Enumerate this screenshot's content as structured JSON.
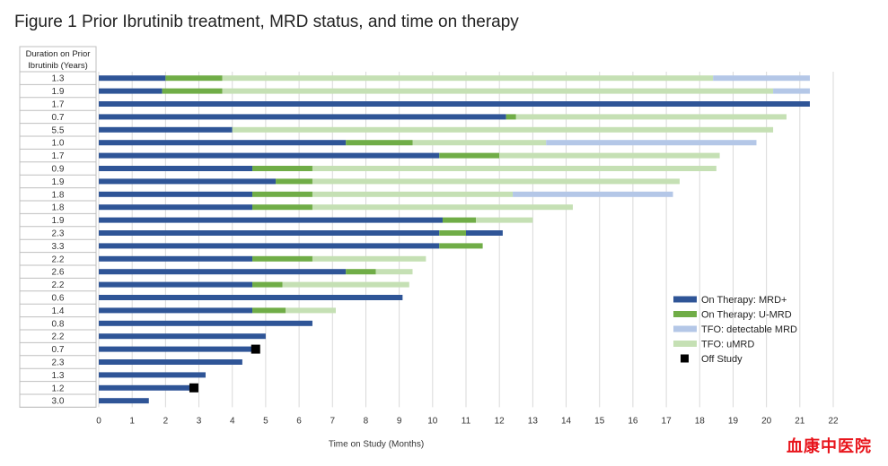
{
  "title": "Figure 1 Prior Ibrutinib treatment, MRD status, and time on therapy",
  "watermark": "血康中医院",
  "colors": {
    "mrd_pos": "#2f5597",
    "umrd_on": "#70ad47",
    "tfo_detect": "#b4c7e7",
    "tfo_umrd": "#c5e0b4",
    "off_study": "#000000",
    "grid": "#d9d9d9"
  },
  "chart_data": {
    "type": "bar",
    "orientation": "horizontal",
    "stacked": true,
    "row_header": "Duration on Prior Ibrutinib (Years)",
    "xlabel": "Time on Study (Months)",
    "xlim": [
      0,
      22
    ],
    "xticks": [
      0,
      1,
      2,
      3,
      4,
      5,
      6,
      7,
      8,
      9,
      10,
      11,
      12,
      13,
      14,
      15,
      16,
      17,
      18,
      19,
      20,
      21,
      22
    ],
    "legend_position": "right-middle",
    "legend": [
      {
        "key": "mrd_pos",
        "label": "On Therapy: MRD+"
      },
      {
        "key": "umrd_on",
        "label": "On Therapy: U-MRD"
      },
      {
        "key": "tfo_detect",
        "label": "TFO: detectable MRD"
      },
      {
        "key": "tfo_umrd",
        "label": "TFO: uMRD"
      },
      {
        "key": "off_study",
        "label": "Off Study"
      }
    ],
    "rows": [
      {
        "label": "1.3",
        "segments": [
          {
            "s": "mrd_pos",
            "from": 0,
            "to": 2.0
          },
          {
            "s": "umrd_on",
            "from": 2.0,
            "to": 3.7
          },
          {
            "s": "tfo_umrd",
            "from": 3.7,
            "to": 18.4
          },
          {
            "s": "tfo_detect",
            "from": 18.4,
            "to": 21.3
          }
        ]
      },
      {
        "label": "1.9",
        "segments": [
          {
            "s": "mrd_pos",
            "from": 0,
            "to": 1.9
          },
          {
            "s": "umrd_on",
            "from": 1.9,
            "to": 3.7
          },
          {
            "s": "tfo_umrd",
            "from": 3.7,
            "to": 20.2
          },
          {
            "s": "tfo_detect",
            "from": 20.2,
            "to": 21.3
          }
        ]
      },
      {
        "label": "1.7",
        "segments": [
          {
            "s": "mrd_pos",
            "from": 0,
            "to": 21.3
          }
        ]
      },
      {
        "label": "0.7",
        "segments": [
          {
            "s": "mrd_pos",
            "from": 0,
            "to": 12.2
          },
          {
            "s": "umrd_on",
            "from": 12.2,
            "to": 12.5
          },
          {
            "s": "tfo_umrd",
            "from": 12.5,
            "to": 20.6
          }
        ]
      },
      {
        "label": "5.5",
        "segments": [
          {
            "s": "mrd_pos",
            "from": 0,
            "to": 4.0
          },
          {
            "s": "tfo_umrd",
            "from": 4.0,
            "to": 20.2
          }
        ]
      },
      {
        "label": "1.0",
        "segments": [
          {
            "s": "mrd_pos",
            "from": 0,
            "to": 7.4
          },
          {
            "s": "umrd_on",
            "from": 7.4,
            "to": 9.4
          },
          {
            "s": "tfo_umrd",
            "from": 9.4,
            "to": 13.4
          },
          {
            "s": "tfo_detect",
            "from": 13.4,
            "to": 19.7
          }
        ]
      },
      {
        "label": "1.7",
        "segments": [
          {
            "s": "mrd_pos",
            "from": 0,
            "to": 10.2
          },
          {
            "s": "umrd_on",
            "from": 10.2,
            "to": 12.0
          },
          {
            "s": "tfo_umrd",
            "from": 12.0,
            "to": 18.6
          }
        ]
      },
      {
        "label": "0.9",
        "segments": [
          {
            "s": "mrd_pos",
            "from": 0,
            "to": 4.6
          },
          {
            "s": "umrd_on",
            "from": 4.6,
            "to": 6.4
          },
          {
            "s": "tfo_umrd",
            "from": 6.4,
            "to": 18.5
          }
        ]
      },
      {
        "label": "1.9",
        "segments": [
          {
            "s": "mrd_pos",
            "from": 0,
            "to": 5.3
          },
          {
            "s": "umrd_on",
            "from": 5.3,
            "to": 6.4
          },
          {
            "s": "tfo_umrd",
            "from": 6.4,
            "to": 17.4
          }
        ]
      },
      {
        "label": "1.8",
        "segments": [
          {
            "s": "mrd_pos",
            "from": 0,
            "to": 4.6
          },
          {
            "s": "umrd_on",
            "from": 4.6,
            "to": 6.4
          },
          {
            "s": "tfo_umrd",
            "from": 6.4,
            "to": 12.4
          },
          {
            "s": "tfo_detect",
            "from": 12.4,
            "to": 17.2
          }
        ]
      },
      {
        "label": "1.8",
        "segments": [
          {
            "s": "mrd_pos",
            "from": 0,
            "to": 4.6
          },
          {
            "s": "umrd_on",
            "from": 4.6,
            "to": 6.4
          },
          {
            "s": "tfo_umrd",
            "from": 6.4,
            "to": 14.2
          }
        ]
      },
      {
        "label": "1.9",
        "segments": [
          {
            "s": "mrd_pos",
            "from": 0,
            "to": 10.3
          },
          {
            "s": "umrd_on",
            "from": 10.3,
            "to": 11.3
          },
          {
            "s": "tfo_umrd",
            "from": 11.3,
            "to": 13.0
          }
        ]
      },
      {
        "label": "2.3",
        "segments": [
          {
            "s": "mrd_pos",
            "from": 0,
            "to": 10.2
          },
          {
            "s": "umrd_on",
            "from": 10.2,
            "to": 11.0
          },
          {
            "s": "mrd_pos",
            "from": 11.0,
            "to": 12.1
          }
        ]
      },
      {
        "label": "3.3",
        "segments": [
          {
            "s": "mrd_pos",
            "from": 0,
            "to": 10.2
          },
          {
            "s": "umrd_on",
            "from": 10.2,
            "to": 11.5
          }
        ]
      },
      {
        "label": "2.2",
        "segments": [
          {
            "s": "mrd_pos",
            "from": 0,
            "to": 4.6
          },
          {
            "s": "umrd_on",
            "from": 4.6,
            "to": 6.4
          },
          {
            "s": "tfo_umrd",
            "from": 6.4,
            "to": 9.8
          }
        ]
      },
      {
        "label": "2.6",
        "segments": [
          {
            "s": "mrd_pos",
            "from": 0,
            "to": 7.4
          },
          {
            "s": "umrd_on",
            "from": 7.4,
            "to": 8.3
          },
          {
            "s": "tfo_umrd",
            "from": 8.3,
            "to": 9.4
          }
        ]
      },
      {
        "label": "2.2",
        "segments": [
          {
            "s": "mrd_pos",
            "from": 0,
            "to": 4.6
          },
          {
            "s": "umrd_on",
            "from": 4.6,
            "to": 5.5
          },
          {
            "s": "tfo_umrd",
            "from": 5.5,
            "to": 9.3
          }
        ]
      },
      {
        "label": "0.6",
        "segments": [
          {
            "s": "mrd_pos",
            "from": 0,
            "to": 9.1
          }
        ]
      },
      {
        "label": "1.4",
        "segments": [
          {
            "s": "mrd_pos",
            "from": 0,
            "to": 4.6
          },
          {
            "s": "umrd_on",
            "from": 4.6,
            "to": 5.6
          },
          {
            "s": "tfo_umrd",
            "from": 5.6,
            "to": 7.1
          }
        ]
      },
      {
        "label": "0.8",
        "segments": [
          {
            "s": "mrd_pos",
            "from": 0,
            "to": 6.4
          }
        ]
      },
      {
        "label": "2.2",
        "segments": [
          {
            "s": "mrd_pos",
            "from": 0,
            "to": 5.0
          }
        ]
      },
      {
        "label": "0.7",
        "segments": [
          {
            "s": "mrd_pos",
            "from": 0,
            "to": 4.7
          }
        ],
        "off_study": 4.7
      },
      {
        "label": "2.3",
        "segments": [
          {
            "s": "mrd_pos",
            "from": 0,
            "to": 4.3
          }
        ]
      },
      {
        "label": "1.3",
        "segments": [
          {
            "s": "mrd_pos",
            "from": 0,
            "to": 3.2
          }
        ]
      },
      {
        "label": "1.2",
        "segments": [
          {
            "s": "mrd_pos",
            "from": 0,
            "to": 2.9
          }
        ],
        "off_study": 2.85
      },
      {
        "label": "3.0",
        "segments": [
          {
            "s": "mrd_pos",
            "from": 0,
            "to": 1.5
          }
        ]
      }
    ]
  }
}
